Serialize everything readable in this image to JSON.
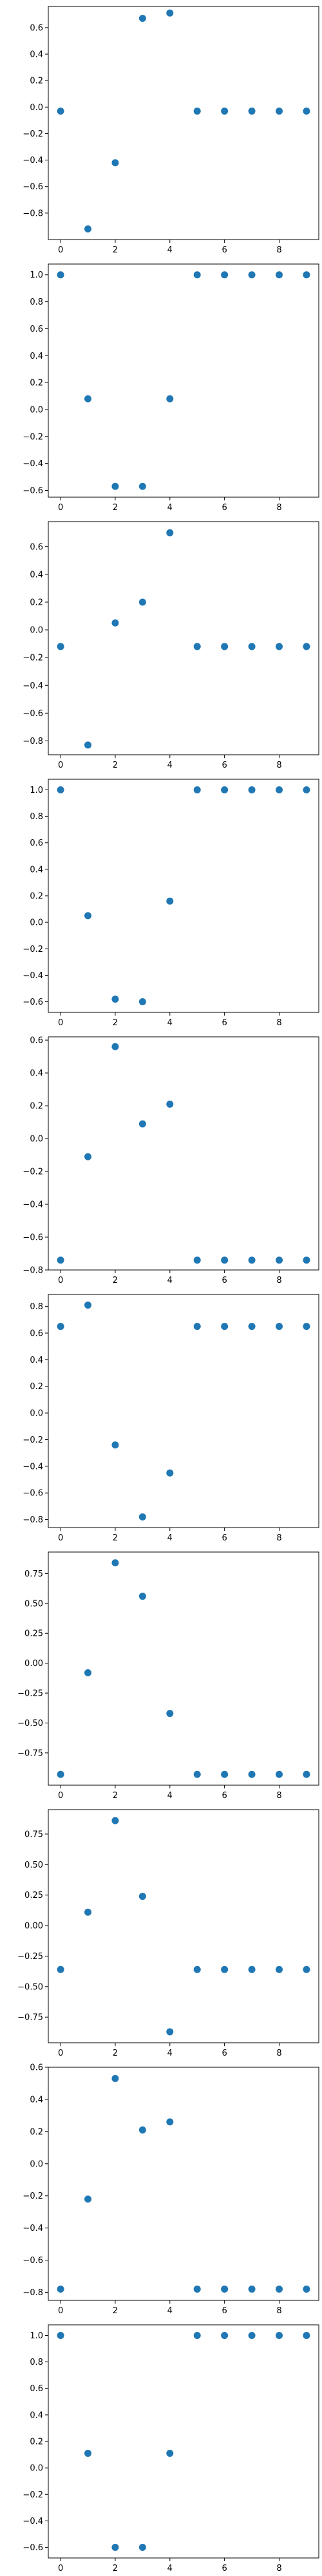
{
  "figure": {
    "background": "#ffffff"
  },
  "chart_data": [
    {
      "type": "scatter",
      "x": [
        0,
        1,
        2,
        3,
        4,
        5,
        6,
        7,
        8,
        9
      ],
      "y": [
        -0.03,
        -0.92,
        -0.42,
        0.67,
        0.71,
        -0.03,
        -0.03,
        -0.03,
        -0.03,
        -0.03
      ],
      "xlim": [
        -0.45,
        9.45
      ],
      "ylim": [
        -1.0,
        0.76
      ],
      "xticks": [
        0,
        2,
        4,
        6,
        8
      ],
      "yticks": [
        0.6,
        0.4,
        0.2,
        0.0,
        -0.2,
        -0.4,
        -0.6,
        -0.8
      ],
      "ytick_labels": [
        "0.6",
        "0.4",
        "0.2",
        "0.0",
        "−0.2",
        "−0.4",
        "−0.6",
        "−0.8"
      ],
      "xtick_labels": [
        "0",
        "2",
        "4",
        "6",
        "8"
      ],
      "title": "",
      "xlabel": "",
      "ylabel": "",
      "grid": false,
      "marker_color": "#1f77b4"
    },
    {
      "type": "scatter",
      "x": [
        0,
        1,
        2,
        3,
        4,
        5,
        6,
        7,
        8,
        9
      ],
      "y": [
        1.0,
        0.08,
        -0.57,
        -0.57,
        0.08,
        1.0,
        1.0,
        1.0,
        1.0,
        1.0
      ],
      "xlim": [
        -0.45,
        9.45
      ],
      "ylim": [
        -0.65,
        1.08
      ],
      "xticks": [
        0,
        2,
        4,
        6,
        8
      ],
      "yticks": [
        1.0,
        0.8,
        0.6,
        0.4,
        0.2,
        0.0,
        -0.2,
        -0.4,
        -0.6
      ],
      "ytick_labels": [
        "1.0",
        "0.8",
        "0.6",
        "0.4",
        "0.2",
        "0.0",
        "−0.2",
        "−0.4",
        "−0.6"
      ],
      "xtick_labels": [
        "0",
        "2",
        "4",
        "6",
        "8"
      ],
      "title": "",
      "xlabel": "",
      "ylabel": "",
      "grid": false,
      "marker_color": "#1f77b4"
    },
    {
      "type": "scatter",
      "x": [
        0,
        1,
        2,
        3,
        4,
        5,
        6,
        7,
        8,
        9
      ],
      "y": [
        -0.12,
        -0.83,
        0.05,
        0.2,
        0.7,
        -0.12,
        -0.12,
        -0.12,
        -0.12,
        -0.12
      ],
      "xlim": [
        -0.45,
        9.45
      ],
      "ylim": [
        -0.9,
        0.78
      ],
      "xticks": [
        0,
        2,
        4,
        6,
        8
      ],
      "yticks": [
        0.6,
        0.4,
        0.2,
        0.0,
        -0.2,
        -0.4,
        -0.6,
        -0.8
      ],
      "ytick_labels": [
        "0.6",
        "0.4",
        "0.2",
        "0.0",
        "−0.2",
        "−0.4",
        "−0.6",
        "−0.8"
      ],
      "xtick_labels": [
        "0",
        "2",
        "4",
        "6",
        "8"
      ],
      "title": "",
      "xlabel": "",
      "ylabel": "",
      "grid": false,
      "marker_color": "#1f77b4"
    },
    {
      "type": "scatter",
      "x": [
        0,
        1,
        2,
        3,
        4,
        5,
        6,
        7,
        8,
        9
      ],
      "y": [
        1.0,
        0.05,
        -0.58,
        -0.6,
        0.16,
        1.0,
        1.0,
        1.0,
        1.0,
        1.0
      ],
      "xlim": [
        -0.45,
        9.45
      ],
      "ylim": [
        -0.68,
        1.08
      ],
      "xticks": [
        0,
        2,
        4,
        6,
        8
      ],
      "yticks": [
        1.0,
        0.8,
        0.6,
        0.4,
        0.2,
        0.0,
        -0.2,
        -0.4,
        -0.6
      ],
      "ytick_labels": [
        "1.0",
        "0.8",
        "0.6",
        "0.4",
        "0.2",
        "0.0",
        "−0.2",
        "−0.4",
        "−0.6"
      ],
      "xtick_labels": [
        "0",
        "2",
        "4",
        "6",
        "8"
      ],
      "title": "",
      "xlabel": "",
      "ylabel": "",
      "grid": false,
      "marker_color": "#1f77b4"
    },
    {
      "type": "scatter",
      "x": [
        0,
        1,
        2,
        3,
        4,
        5,
        6,
        7,
        8,
        9
      ],
      "y": [
        -0.74,
        -0.11,
        0.56,
        0.09,
        0.21,
        -0.74,
        -0.74,
        -0.74,
        -0.74,
        -0.74
      ],
      "xlim": [
        -0.45,
        9.45
      ],
      "ylim": [
        -0.8,
        0.62
      ],
      "xticks": [
        0,
        2,
        4,
        6,
        8
      ],
      "yticks": [
        0.6,
        0.4,
        0.2,
        0.0,
        -0.2,
        -0.4,
        -0.6,
        -0.8
      ],
      "ytick_labels": [
        "0.6",
        "0.4",
        "0.2",
        "0.0",
        "−0.2",
        "−0.4",
        "−0.6",
        "−0.8"
      ],
      "xtick_labels": [
        "0",
        "2",
        "4",
        "6",
        "8"
      ],
      "title": "",
      "xlabel": "",
      "ylabel": "",
      "grid": false,
      "marker_color": "#1f77b4"
    },
    {
      "type": "scatter",
      "x": [
        0,
        1,
        2,
        3,
        4,
        5,
        6,
        7,
        8,
        9
      ],
      "y": [
        0.65,
        0.81,
        -0.24,
        -0.78,
        -0.45,
        0.65,
        0.65,
        0.65,
        0.65,
        0.65
      ],
      "xlim": [
        -0.45,
        9.45
      ],
      "ylim": [
        -0.86,
        0.89
      ],
      "xticks": [
        0,
        2,
        4,
        6,
        8
      ],
      "yticks": [
        0.8,
        0.6,
        0.4,
        0.2,
        0.0,
        -0.2,
        -0.4,
        -0.6,
        -0.8
      ],
      "ytick_labels": [
        "0.8",
        "0.6",
        "0.4",
        "0.2",
        "0.0",
        "−0.2",
        "−0.4",
        "−0.6",
        "−0.8"
      ],
      "xtick_labels": [
        "0",
        "2",
        "4",
        "6",
        "8"
      ],
      "title": "",
      "xlabel": "",
      "ylabel": "",
      "grid": false,
      "marker_color": "#1f77b4"
    },
    {
      "type": "scatter",
      "x": [
        0,
        1,
        2,
        3,
        4,
        5,
        6,
        7,
        8,
        9
      ],
      "y": [
        -0.93,
        -0.08,
        0.84,
        0.56,
        -0.42,
        -0.93,
        -0.93,
        -0.93,
        -0.93,
        -0.93
      ],
      "xlim": [
        -0.45,
        9.45
      ],
      "ylim": [
        -1.02,
        0.93
      ],
      "xticks": [
        0,
        2,
        4,
        6,
        8
      ],
      "yticks": [
        0.75,
        0.5,
        0.25,
        0.0,
        -0.25,
        -0.5,
        -0.75
      ],
      "ytick_labels": [
        "0.75",
        "0.50",
        "0.25",
        "0.00",
        "−0.25",
        "−0.50",
        "−0.75"
      ],
      "xtick_labels": [
        "0",
        "2",
        "4",
        "6",
        "8"
      ],
      "title": "",
      "xlabel": "",
      "ylabel": "",
      "grid": false,
      "marker_color": "#1f77b4"
    },
    {
      "type": "scatter",
      "x": [
        0,
        1,
        2,
        3,
        4,
        5,
        6,
        7,
        8,
        9
      ],
      "y": [
        -0.36,
        0.11,
        0.86,
        0.24,
        -0.87,
        -0.36,
        -0.36,
        -0.36,
        -0.36,
        -0.36
      ],
      "xlim": [
        -0.45,
        9.45
      ],
      "ylim": [
        -0.96,
        0.95
      ],
      "xticks": [
        0,
        2,
        4,
        6,
        8
      ],
      "yticks": [
        0.75,
        0.5,
        0.25,
        0.0,
        -0.25,
        -0.5,
        -0.75
      ],
      "ytick_labels": [
        "0.75",
        "0.50",
        "0.25",
        "0.00",
        "−0.25",
        "−0.50",
        "−0.75"
      ],
      "xtick_labels": [
        "0",
        "2",
        "4",
        "6",
        "8"
      ],
      "title": "",
      "xlabel": "",
      "ylabel": "",
      "grid": false,
      "marker_color": "#1f77b4"
    },
    {
      "type": "scatter",
      "x": [
        0,
        1,
        2,
        3,
        4,
        5,
        6,
        7,
        8,
        9
      ],
      "y": [
        -0.78,
        -0.22,
        0.53,
        0.21,
        0.26,
        -0.78,
        -0.78,
        -0.78,
        -0.78,
        -0.78
      ],
      "xlim": [
        -0.45,
        9.45
      ],
      "ylim": [
        -0.85,
        0.6
      ],
      "xticks": [
        0,
        2,
        4,
        6,
        8
      ],
      "yticks": [
        0.6,
        0.4,
        0.2,
        0.0,
        -0.2,
        -0.4,
        -0.6,
        -0.8
      ],
      "ytick_labels": [
        "0.6",
        "0.4",
        "0.2",
        "0.0",
        "−0.2",
        "−0.4",
        "−0.6",
        "−0.8"
      ],
      "xtick_labels": [
        "0",
        "2",
        "4",
        "6",
        "8"
      ],
      "title": "",
      "xlabel": "",
      "ylabel": "",
      "grid": false,
      "marker_color": "#1f77b4"
    },
    {
      "type": "scatter",
      "x": [
        0,
        1,
        2,
        3,
        4,
        5,
        6,
        7,
        8,
        9
      ],
      "y": [
        1.0,
        0.11,
        -0.6,
        -0.6,
        0.11,
        1.0,
        1.0,
        1.0,
        1.0,
        1.0
      ],
      "xlim": [
        -0.45,
        9.45
      ],
      "ylim": [
        -0.68,
        1.08
      ],
      "xticks": [
        0,
        2,
        4,
        6,
        8
      ],
      "yticks": [
        1.0,
        0.8,
        0.6,
        0.4,
        0.2,
        0.0,
        -0.2,
        -0.4,
        -0.6
      ],
      "ytick_labels": [
        "1.0",
        "0.8",
        "0.6",
        "0.4",
        "0.2",
        "0.0",
        "−0.2",
        "−0.4",
        "−0.6"
      ],
      "xtick_labels": [
        "0",
        "2",
        "4",
        "6",
        "8"
      ],
      "title": "",
      "xlabel": "",
      "ylabel": "",
      "grid": false,
      "marker_color": "#1f77b4"
    }
  ]
}
